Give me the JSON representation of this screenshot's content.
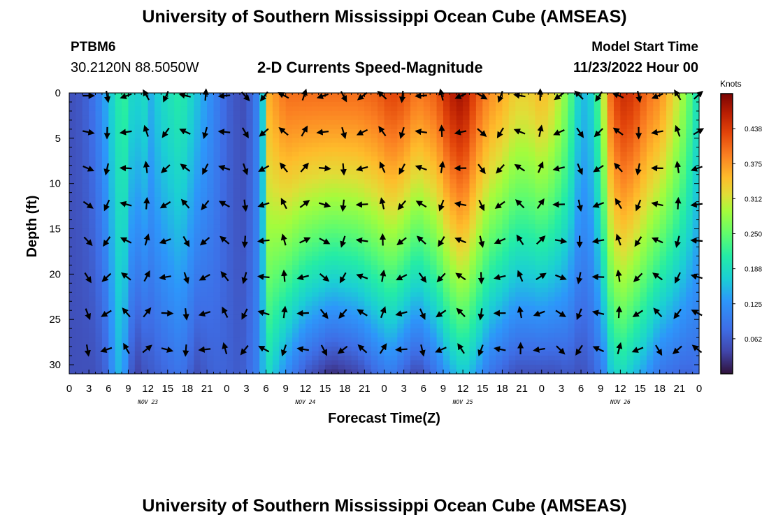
{
  "header": {
    "title": "University of Southern Mississippi Ocean Cube (AMSEAS)",
    "station": "PTBM6",
    "coordinates": "30.2120N  88.5050W",
    "subtitle": "2-D Currents Speed-Magnitude",
    "model_start_label": "Model Start Time",
    "model_start_value": "11/23/2022 Hour 00"
  },
  "footer": {
    "title": "University of Southern Mississippi Ocean Cube (AMSEAS)"
  },
  "chart_data": {
    "type": "heatmap",
    "title": "2-D Currents Speed-Magnitude",
    "xlabel": "Forecast Time(Z)",
    "ylabel": "Depth (ft)",
    "x_range_hours": [
      0,
      96
    ],
    "y_range_ft": [
      0,
      31
    ],
    "x_tick_labels": [
      "0",
      "3",
      "6",
      "9",
      "12",
      "15",
      "18",
      "21",
      "0",
      "3",
      "6",
      "9",
      "12",
      "15",
      "18",
      "21",
      "0",
      "3",
      "6",
      "9",
      "12",
      "15",
      "18",
      "21",
      "0",
      "3",
      "6",
      "9",
      "12",
      "15",
      "18",
      "21",
      "0"
    ],
    "y_ticks": [
      0,
      5,
      10,
      15,
      20,
      25,
      30
    ],
    "date_labels": [
      {
        "label": "NOV 23",
        "hour": 12
      },
      {
        "label": "NOV 24",
        "hour": 36
      },
      {
        "label": "NOV 25",
        "hour": 60
      },
      {
        "label": "NOV 26",
        "hour": 84
      }
    ],
    "colorbar": {
      "unit": "Knots",
      "range": [
        0,
        0.5
      ],
      "tick_labels": [
        "0.062",
        "0.125",
        "0.188",
        "0.250",
        "0.312",
        "0.375",
        "0.438"
      ],
      "tick_values": [
        0.0625,
        0.125,
        0.1875,
        0.25,
        0.3125,
        0.375,
        0.4375
      ]
    },
    "speed_profile_by_hour": {
      "hours": [
        0,
        2,
        4,
        5.5,
        7,
        8,
        9,
        10,
        11,
        12.5,
        14,
        17,
        19.5,
        22,
        24,
        26,
        27,
        28.5,
        29.5,
        30.5,
        33,
        36,
        40,
        44,
        47,
        49,
        51,
        53,
        56,
        58,
        60,
        62,
        64,
        66,
        68,
        70,
        72,
        74,
        76,
        78,
        80,
        81.5,
        82.5,
        84,
        86,
        88,
        90,
        92,
        94,
        96
      ],
      "surface": [
        0.05,
        0.06,
        0.09,
        0.14,
        0.19,
        0.22,
        0.21,
        0.15,
        0.2,
        0.15,
        0.18,
        0.21,
        0.16,
        0.11,
        0.07,
        0.05,
        0.05,
        0.1,
        0.17,
        0.36,
        0.4,
        0.4,
        0.4,
        0.4,
        0.41,
        0.43,
        0.42,
        0.39,
        0.41,
        0.46,
        0.48,
        0.42,
        0.38,
        0.36,
        0.33,
        0.33,
        0.35,
        0.32,
        0.26,
        0.15,
        0.18,
        0.31,
        0.4,
        0.45,
        0.44,
        0.4,
        0.38,
        0.33,
        0.27,
        0.18
      ],
      "bottom": [
        0.05,
        0.05,
        0.05,
        0.07,
        0.14,
        0.16,
        0.09,
        0.03,
        0.05,
        0.06,
        0.07,
        0.09,
        0.05,
        0.07,
        0.07,
        0.06,
        0.07,
        0.1,
        0.15,
        0.18,
        0.12,
        0.06,
        0.02,
        0.04,
        0.08,
        0.1,
        0.07,
        0.04,
        0.09,
        0.14,
        0.17,
        0.14,
        0.09,
        0.07,
        0.05,
        0.05,
        0.05,
        0.05,
        0.06,
        0.05,
        0.07,
        0.11,
        0.16,
        0.19,
        0.16,
        0.13,
        0.09,
        0.08,
        0.07,
        0.08
      ]
    },
    "vector_depths_ft": [
      0,
      4,
      8,
      12,
      16,
      20,
      24,
      28
    ],
    "vector_hours": [
      3,
      6,
      9,
      12,
      15,
      18,
      21,
      24,
      27,
      30,
      33,
      36,
      39,
      42,
      45,
      48,
      51,
      54,
      57,
      60,
      63,
      66,
      69,
      72,
      75,
      78,
      81,
      84,
      87,
      90,
      93,
      96
    ]
  }
}
